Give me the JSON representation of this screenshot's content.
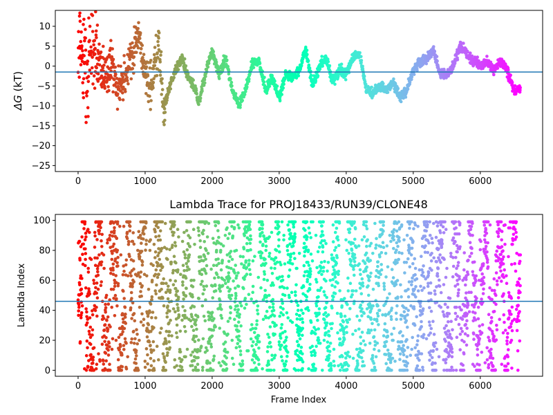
{
  "chart_data": [
    {
      "type": "scatter",
      "title": "",
      "xlabel": "",
      "ylabel": "ΔG (kT)",
      "ylabel_symbol": "ΔG",
      "ylabel_unit": " (kT)",
      "xlim": [
        -340,
        6930
      ],
      "ylim": [
        -26.5,
        14
      ],
      "xticks": [
        0,
        1000,
        2000,
        3000,
        4000,
        5000,
        6000
      ],
      "yticks": [
        -25,
        -20,
        -15,
        -10,
        -5,
        0,
        5,
        10
      ],
      "hline": -1.5,
      "hline_color": "#1f77b4",
      "colormap": "rainbow",
      "n_points": 6600,
      "trace_outline": [
        [
          0,
          10
        ],
        [
          60,
          3
        ],
        [
          120,
          -4
        ],
        [
          200,
          8
        ],
        [
          300,
          2
        ],
        [
          400,
          -3
        ],
        [
          500,
          0
        ],
        [
          600,
          -6
        ],
        [
          700,
          -2
        ],
        [
          800,
          3
        ],
        [
          900,
          9
        ],
        [
          1000,
          -2
        ],
        [
          1100,
          -5
        ],
        [
          1200,
          6
        ],
        [
          1280,
          -11
        ],
        [
          1350,
          -6
        ],
        [
          1450,
          -1
        ],
        [
          1550,
          2
        ],
        [
          1650,
          -3
        ],
        [
          1750,
          -6
        ],
        [
          1800,
          -9
        ],
        [
          1900,
          -2
        ],
        [
          2000,
          4
        ],
        [
          2100,
          -2
        ],
        [
          2200,
          2
        ],
        [
          2300,
          -6
        ],
        [
          2400,
          -10
        ],
        [
          2500,
          -6
        ],
        [
          2600,
          1
        ],
        [
          2700,
          1
        ],
        [
          2800,
          -6
        ],
        [
          2900,
          -3
        ],
        [
          3000,
          -8
        ],
        [
          3100,
          -2
        ],
        [
          3200,
          -3
        ],
        [
          3300,
          -1
        ],
        [
          3400,
          4
        ],
        [
          3500,
          -5
        ],
        [
          3600,
          0
        ],
        [
          3700,
          2
        ],
        [
          3800,
          -4
        ],
        [
          3900,
          -1
        ],
        [
          4000,
          -2
        ],
        [
          4100,
          2
        ],
        [
          4200,
          3
        ],
        [
          4300,
          -6
        ],
        [
          4400,
          -7
        ],
        [
          4500,
          -5
        ],
        [
          4600,
          -6
        ],
        [
          4700,
          -4
        ],
        [
          4800,
          -8
        ],
        [
          4900,
          -6
        ],
        [
          5000,
          -1
        ],
        [
          5100,
          1
        ],
        [
          5200,
          2
        ],
        [
          5300,
          4
        ],
        [
          5400,
          -2
        ],
        [
          5500,
          -2
        ],
        [
          5600,
          0
        ],
        [
          5700,
          5
        ],
        [
          5800,
          3
        ],
        [
          5900,
          1
        ],
        [
          6000,
          0
        ],
        [
          6100,
          1
        ],
        [
          6200,
          -1
        ],
        [
          6300,
          1
        ],
        [
          6400,
          -1
        ],
        [
          6500,
          -6
        ],
        [
          6600,
          -6
        ]
      ]
    },
    {
      "type": "scatter",
      "title": "Lambda Trace for PROJ18433/RUN39/CLONE48",
      "xlabel": "Frame Index",
      "ylabel": "Lambda Index",
      "xlim": [
        -340,
        6930
      ],
      "ylim": [
        -4,
        104
      ],
      "xticks": [
        0,
        1000,
        2000,
        3000,
        4000,
        5000,
        6000
      ],
      "yticks": [
        0,
        20,
        40,
        60,
        80,
        100
      ],
      "hline": 46,
      "hline_color": "#1f77b4",
      "colormap": "rainbow",
      "n_points": 6600,
      "value_range": [
        0,
        99
      ]
    }
  ]
}
